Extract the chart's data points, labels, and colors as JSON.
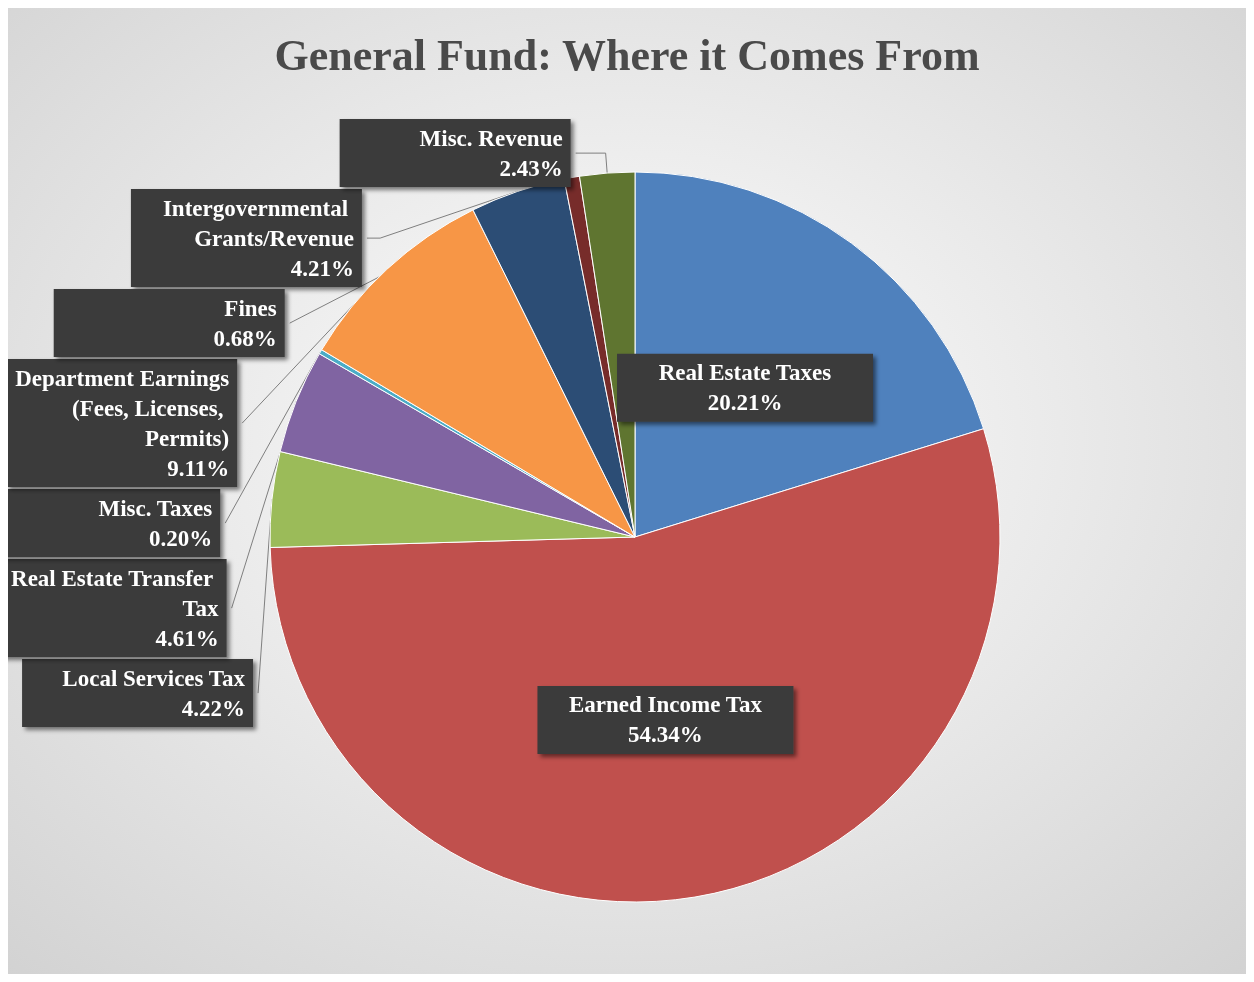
{
  "chart_data": {
    "type": "pie",
    "title": "General Fund: Where it Comes From",
    "categories": [
      "Real Estate Taxes",
      "Earned Income Tax",
      "Local Services Tax",
      "Real Estate Transfer Tax",
      "Misc. Taxes",
      "Department Earnings (Fees, Licenses, Permits)",
      "Intergovernmental Grants/Revenue",
      "Fines",
      "Misc. Revenue"
    ],
    "values": [
      20.21,
      54.34,
      4.22,
      4.61,
      0.2,
      9.11,
      4.21,
      0.68,
      2.43
    ],
    "value_labels": [
      "20.21%",
      "54.34%",
      "4.22%",
      "4.61%",
      "0.20%",
      "9.11%",
      "4.21%",
      "0.68%",
      "2.43%"
    ],
    "colors": [
      "#4f81bd",
      "#c0504d",
      "#9bbb59",
      "#8064a2",
      "#4bacc6",
      "#f79646",
      "#2c4d75",
      "#772c2a",
      "#5f7530"
    ],
    "legend": false
  }
}
